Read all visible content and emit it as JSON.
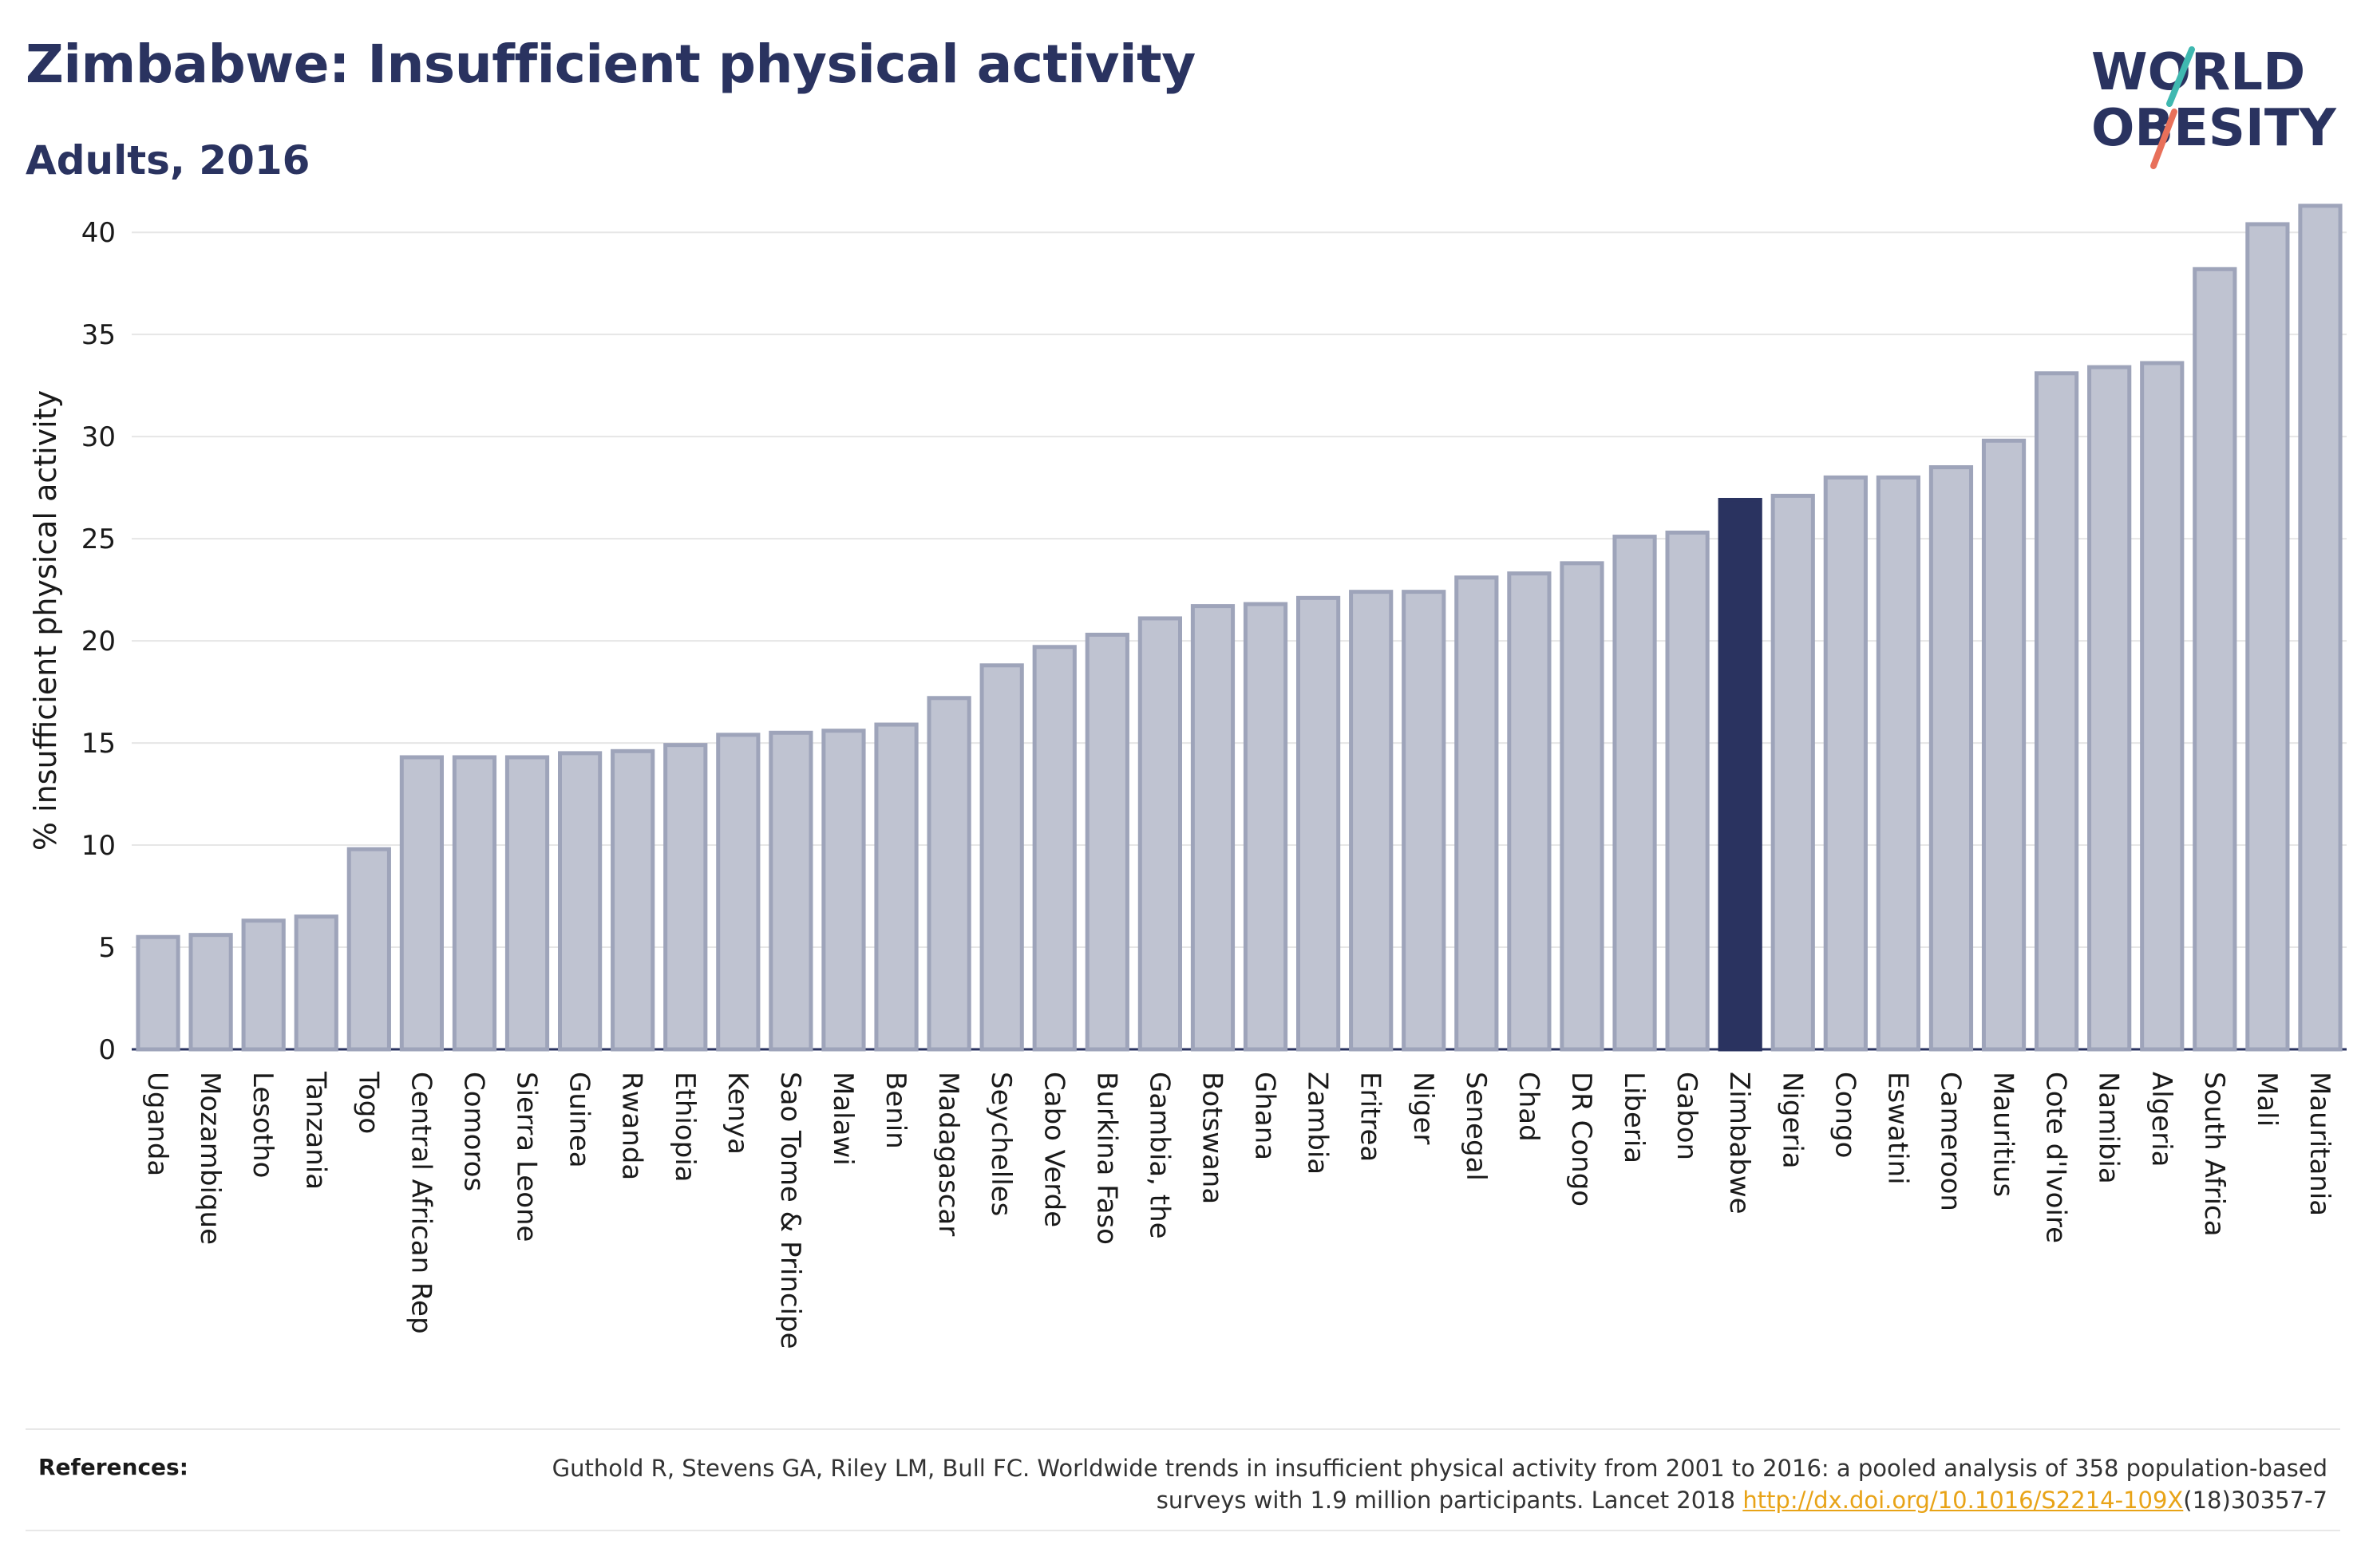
{
  "header": {
    "title": "Zimbabwe: Insufficient physical activity",
    "subtitle": "Adults, 2016"
  },
  "logo": {
    "line1": "WORLD",
    "line2": "OBESITY",
    "accent_teal": "#3fb8b0",
    "accent_coral": "#e8705a"
  },
  "colors": {
    "bar_fill": "#bfc3d1",
    "bar_stroke": "#9ea4ba",
    "highlight_fill": "#2a3360",
    "title": "#2a3360",
    "link": "#e8a317"
  },
  "chart_data": {
    "type": "bar",
    "title": "Zimbabwe: Insufficient physical activity",
    "subtitle": "Adults, 2016",
    "xlabel": "",
    "ylabel": "% insufficient physical activity",
    "ylim": [
      0,
      42
    ],
    "yticks": [
      0,
      5,
      10,
      15,
      20,
      25,
      30,
      35,
      40
    ],
    "grid": "horizontal",
    "highlight": "Zimbabwe",
    "categories": [
      "Uganda",
      "Mozambique",
      "Lesotho",
      "Tanzania",
      "Togo",
      "Central African Rep",
      "Comoros",
      "Sierra Leone",
      "Guinea",
      "Rwanda",
      "Ethiopia",
      "Kenya",
      "Sao Tome & Principe",
      "Malawi",
      "Benin",
      "Madagascar",
      "Seychelles",
      "Cabo Verde",
      "Burkina Faso",
      "Gambia, the",
      "Botswana",
      "Ghana",
      "Zambia",
      "Eritrea",
      "Niger",
      "Senegal",
      "Chad",
      "DR Congo",
      "Liberia",
      "Gabon",
      "Zimbabwe",
      "Nigeria",
      "Congo",
      "Eswatini",
      "Cameroon",
      "Mauritius",
      "Cote d'Ivoire",
      "Namibia",
      "Algeria",
      "South Africa",
      "Mali",
      "Mauritania"
    ],
    "values": [
      5.5,
      5.6,
      6.3,
      6.5,
      9.8,
      14.3,
      14.3,
      14.3,
      14.5,
      14.6,
      14.9,
      15.4,
      15.5,
      15.6,
      15.9,
      17.2,
      18.8,
      19.7,
      20.3,
      21.1,
      21.7,
      21.8,
      22.1,
      22.4,
      22.4,
      23.1,
      23.3,
      23.8,
      25.1,
      25.3,
      26.9,
      27.1,
      28.0,
      28.0,
      28.5,
      29.8,
      33.1,
      33.4,
      33.6,
      38.2,
      40.4,
      41.3
    ]
  },
  "references": {
    "label": "References:",
    "text_before": "Guthold R, Stevens GA, Riley LM, Bull FC. Worldwide trends in insufficient physical activity from 2001 to 2016: a pooled analysis of 358 population-based surveys with 1.9 million participants. Lancet 2018 ",
    "link_text": "http://dx.doi.org/10.1016/S2214-109X",
    "text_after": "(18)30357-7"
  }
}
